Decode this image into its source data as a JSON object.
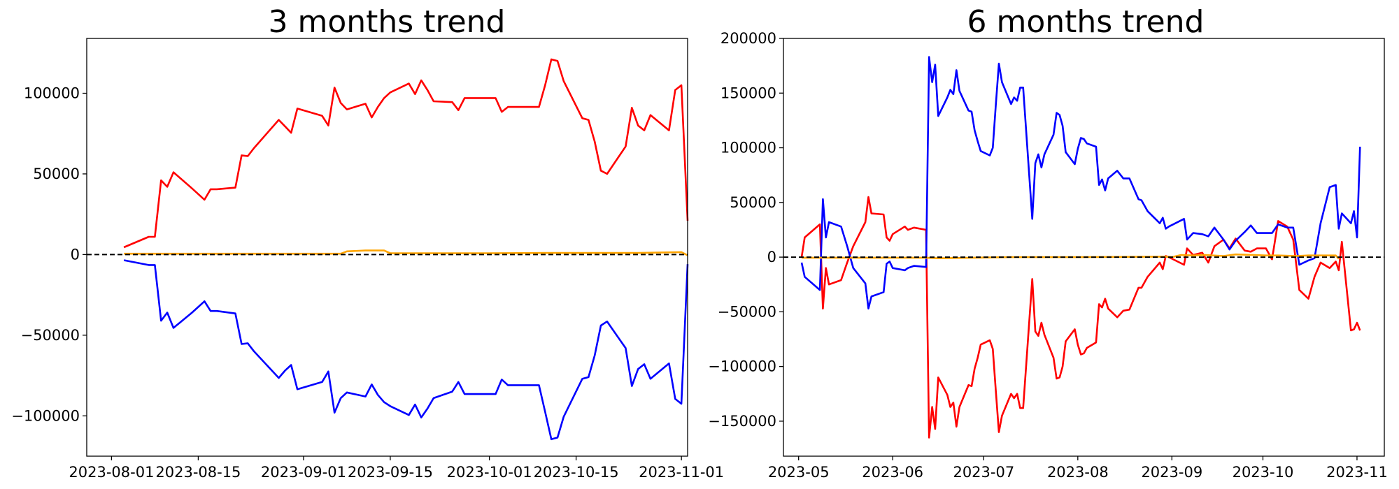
{
  "chart_data": [
    {
      "type": "line",
      "title": "3 months trend",
      "xlabel": "",
      "ylabel": "",
      "x_type": "date",
      "xlim": [
        "2023-07-28",
        "2023-11-02"
      ],
      "ylim": [
        -125000,
        134000
      ],
      "x_ticks": [
        "2023-08-01",
        "2023-08-15",
        "2023-09-01",
        "2023-09-15",
        "2023-10-01",
        "2023-10-15",
        "2023-11-01"
      ],
      "x_tick_labels": [
        "2023-08-01",
        "2023-08-15",
        "2023-09-01",
        "2023-09-15",
        "2023-10-01",
        "2023-10-15",
        "2023-11-01"
      ],
      "y_ticks": [
        -100000,
        -50000,
        0,
        50000,
        100000
      ],
      "y_tick_labels": [
        "−100000",
        "−50000",
        "0",
        "50000",
        "100000"
      ],
      "grid": false,
      "reference_line": {
        "y": 0,
        "style": "dashed",
        "color": "#000000"
      },
      "series": [
        {
          "color": "#ff0000",
          "x": [
            "2023-08-03",
            "2023-08-07",
            "2023-08-08",
            "2023-08-09",
            "2023-08-10",
            "2023-08-11",
            "2023-08-14",
            "2023-08-16",
            "2023-08-17",
            "2023-08-18",
            "2023-08-21",
            "2023-08-22",
            "2023-08-23",
            "2023-08-24",
            "2023-08-28",
            "2023-08-29",
            "2023-08-30",
            "2023-08-31",
            "2023-09-04",
            "2023-09-05",
            "2023-09-06",
            "2023-09-07",
            "2023-09-08",
            "2023-09-11",
            "2023-09-12",
            "2023-09-13",
            "2023-09-14",
            "2023-09-15",
            "2023-09-18",
            "2023-09-19",
            "2023-09-20",
            "2023-09-21",
            "2023-09-22",
            "2023-09-25",
            "2023-09-26",
            "2023-09-27",
            "2023-09-28",
            "2023-09-29",
            "2023-10-02",
            "2023-10-03",
            "2023-10-04",
            "2023-10-05",
            "2023-10-06",
            "2023-10-09",
            "2023-10-10",
            "2023-10-11",
            "2023-10-12",
            "2023-10-13",
            "2023-10-16",
            "2023-10-17",
            "2023-10-18",
            "2023-10-19",
            "2023-10-20",
            "2023-10-23",
            "2023-10-24",
            "2023-10-25",
            "2023-10-26",
            "2023-10-27",
            "2023-10-30",
            "2023-10-31",
            "2023-11-01",
            "2023-11-02"
          ],
          "y": [
            4500,
            11000,
            11000,
            46000,
            42000,
            51000,
            41000,
            34000,
            40500,
            40500,
            41500,
            61500,
            61000,
            66000,
            83500,
            79500,
            75500,
            90500,
            86000,
            80000,
            103500,
            94000,
            90000,
            93500,
            85000,
            91500,
            97000,
            100500,
            106000,
            99500,
            108000,
            102000,
            95000,
            94500,
            89500,
            97000,
            97000,
            97000,
            97000,
            88500,
            91500,
            91500,
            91500,
            91500,
            105000,
            121000,
            120000,
            107500,
            84500,
            83500,
            70000,
            52000,
            50000,
            67000,
            91000,
            80000,
            77000,
            86500,
            77000,
            102000,
            105000,
            21000
          ]
        },
        {
          "color": "#0000ff",
          "x": [
            "2023-08-03",
            "2023-08-07",
            "2023-08-08",
            "2023-08-09",
            "2023-08-10",
            "2023-08-11",
            "2023-08-14",
            "2023-08-16",
            "2023-08-17",
            "2023-08-18",
            "2023-08-21",
            "2023-08-22",
            "2023-08-23",
            "2023-08-24",
            "2023-08-28",
            "2023-08-29",
            "2023-08-30",
            "2023-08-31",
            "2023-09-04",
            "2023-09-05",
            "2023-09-06",
            "2023-09-07",
            "2023-09-08",
            "2023-09-11",
            "2023-09-12",
            "2023-09-13",
            "2023-09-14",
            "2023-09-15",
            "2023-09-18",
            "2023-09-19",
            "2023-09-20",
            "2023-09-21",
            "2023-09-22",
            "2023-09-25",
            "2023-09-26",
            "2023-09-27",
            "2023-09-28",
            "2023-09-29",
            "2023-10-02",
            "2023-10-03",
            "2023-10-04",
            "2023-10-05",
            "2023-10-06",
            "2023-10-09",
            "2023-10-10",
            "2023-10-11",
            "2023-10-12",
            "2023-10-13",
            "2023-10-16",
            "2023-10-17",
            "2023-10-18",
            "2023-10-19",
            "2023-10-20",
            "2023-10-23",
            "2023-10-24",
            "2023-10-25",
            "2023-10-26",
            "2023-10-27",
            "2023-10-30",
            "2023-10-31",
            "2023-11-01",
            "2023-11-02"
          ],
          "y": [
            -3500,
            -6500,
            -6500,
            -41000,
            -36000,
            -45500,
            -36000,
            -29000,
            -35000,
            -35000,
            -36500,
            -55500,
            -55000,
            -60000,
            -76500,
            -72000,
            -68500,
            -83500,
            -79000,
            -72500,
            -98000,
            -89000,
            -85500,
            -88000,
            -80500,
            -87000,
            -91500,
            -94000,
            -99500,
            -93000,
            -101000,
            -95500,
            -89000,
            -85000,
            -79000,
            -86500,
            -86500,
            -86500,
            -86500,
            -77500,
            -81000,
            -81000,
            -81000,
            -81000,
            -97500,
            -114500,
            -113500,
            -100500,
            -77000,
            -76000,
            -62500,
            -44000,
            -41500,
            -58000,
            -81500,
            -71000,
            -68000,
            -77000,
            -67500,
            -89500,
            -92500,
            -6000
          ]
        },
        {
          "color": "#ffa500",
          "x": [
            "2023-08-03",
            "2023-08-21",
            "2023-09-07",
            "2023-09-08",
            "2023-09-11",
            "2023-09-14",
            "2023-09-15",
            "2023-10-01",
            "2023-10-10",
            "2023-10-20",
            "2023-10-25",
            "2023-11-01",
            "2023-11-02"
          ],
          "y": [
            500,
            500,
            500,
            2000,
            2500,
            2500,
            800,
            800,
            1000,
            1000,
            1000,
            1500,
            -500
          ]
        }
      ]
    },
    {
      "type": "line",
      "title": "6 months trend",
      "xlabel": "",
      "ylabel": "",
      "x_type": "date",
      "xlim": [
        "2023-04-26",
        "2023-11-10"
      ],
      "ylim": [
        -182000,
        200000
      ],
      "x_ticks": [
        "2023-05-01",
        "2023-06-01",
        "2023-07-01",
        "2023-08-01",
        "2023-09-01",
        "2023-10-01",
        "2023-11-01"
      ],
      "x_tick_labels": [
        "2023-05",
        "2023-06",
        "2023-07",
        "2023-08",
        "2023-09",
        "2023-10",
        "2023-11"
      ],
      "y_ticks": [
        -150000,
        -100000,
        -50000,
        0,
        50000,
        100000,
        150000,
        200000
      ],
      "y_tick_labels": [
        "−150000",
        "−100000",
        "−50000",
        "0",
        "50000",
        "100000",
        "150000",
        "200000"
      ],
      "grid": false,
      "reference_line": {
        "y": 0,
        "style": "dashed",
        "color": "#000000"
      },
      "series": [
        {
          "color": "#ff0000",
          "x": [
            "2023-05-02",
            "2023-05-03",
            "2023-05-08",
            "2023-05-09",
            "2023-05-10",
            "2023-05-11",
            "2023-05-15",
            "2023-05-17",
            "2023-05-19",
            "2023-05-23",
            "2023-05-24",
            "2023-05-25",
            "2023-05-29",
            "2023-05-30",
            "2023-05-31",
            "2023-06-01",
            "2023-06-05",
            "2023-06-06",
            "2023-06-08",
            "2023-06-12",
            "2023-06-13",
            "2023-06-14",
            "2023-06-15",
            "2023-06-16",
            "2023-06-19",
            "2023-06-20",
            "2023-06-21",
            "2023-06-22",
            "2023-06-23",
            "2023-06-26",
            "2023-06-27",
            "2023-06-28",
            "2023-06-29",
            "2023-06-30",
            "2023-07-03",
            "2023-07-04",
            "2023-07-05",
            "2023-07-06",
            "2023-07-07",
            "2023-07-10",
            "2023-07-11",
            "2023-07-12",
            "2023-07-13",
            "2023-07-14",
            "2023-07-17",
            "2023-07-18",
            "2023-07-19",
            "2023-07-20",
            "2023-07-21",
            "2023-07-24",
            "2023-07-25",
            "2023-07-26",
            "2023-07-27",
            "2023-07-28",
            "2023-07-31",
            "2023-08-01",
            "2023-08-02",
            "2023-08-03",
            "2023-08-04",
            "2023-08-07",
            "2023-08-08",
            "2023-08-09",
            "2023-08-10",
            "2023-08-11",
            "2023-08-14",
            "2023-08-16",
            "2023-08-18",
            "2023-08-21",
            "2023-08-22",
            "2023-08-24",
            "2023-08-28",
            "2023-08-29",
            "2023-08-30",
            "2023-08-31",
            "2023-09-05",
            "2023-09-06",
            "2023-09-08",
            "2023-09-11",
            "2023-09-13",
            "2023-09-15",
            "2023-09-18",
            "2023-09-20",
            "2023-09-22",
            "2023-09-25",
            "2023-09-27",
            "2023-09-29",
            "2023-10-02",
            "2023-10-04",
            "2023-10-06",
            "2023-10-09",
            "2023-10-11",
            "2023-10-13",
            "2023-10-16",
            "2023-10-18",
            "2023-10-20",
            "2023-10-23",
            "2023-10-25",
            "2023-10-26",
            "2023-10-27",
            "2023-10-30",
            "2023-10-31",
            "2023-11-01",
            "2023-11-02"
          ],
          "y": [
            0,
            18000,
            30000,
            -47000,
            -10000,
            -25000,
            -21000,
            -5000,
            10000,
            32000,
            55000,
            40000,
            39000,
            18000,
            15000,
            21000,
            28000,
            25000,
            27000,
            25000,
            -165000,
            -137000,
            -157000,
            -110000,
            -126000,
            -137000,
            -133000,
            -155000,
            -137000,
            -117000,
            -118000,
            -102000,
            -92000,
            -80000,
            -76000,
            -84000,
            -123000,
            -160000,
            -145000,
            -125000,
            -129000,
            -125000,
            -138000,
            -138000,
            -20000,
            -68000,
            -72000,
            -60000,
            -71000,
            -92000,
            -111000,
            -110000,
            -100000,
            -77000,
            -66000,
            -80000,
            -89000,
            -88000,
            -83000,
            -78000,
            -43000,
            -46000,
            -38000,
            -47000,
            -55000,
            -49000,
            -48000,
            -28000,
            -28000,
            -18000,
            -5000,
            -11000,
            1000,
            0,
            -7000,
            8000,
            2000,
            4000,
            -5000,
            10000,
            16000,
            8000,
            17000,
            6000,
            5000,
            8000,
            8000,
            -2000,
            33000,
            28000,
            16000,
            -30000,
            -38000,
            -18000,
            -5000,
            -10000,
            -4000,
            -12000,
            14000,
            -67000,
            -66000,
            -60000,
            -67000
          ]
        },
        {
          "color": "#0000ff",
          "x": [
            "2023-05-02",
            "2023-05-03",
            "2023-05-08",
            "2023-05-09",
            "2023-05-10",
            "2023-05-11",
            "2023-05-15",
            "2023-05-17",
            "2023-05-19",
            "2023-05-23",
            "2023-05-24",
            "2023-05-25",
            "2023-05-29",
            "2023-05-30",
            "2023-05-31",
            "2023-06-01",
            "2023-06-05",
            "2023-06-06",
            "2023-06-08",
            "2023-06-12",
            "2023-06-13",
            "2023-06-14",
            "2023-06-15",
            "2023-06-16",
            "2023-06-19",
            "2023-06-20",
            "2023-06-21",
            "2023-06-22",
            "2023-06-23",
            "2023-06-26",
            "2023-06-27",
            "2023-06-28",
            "2023-06-29",
            "2023-06-30",
            "2023-07-03",
            "2023-07-04",
            "2023-07-05",
            "2023-07-06",
            "2023-07-07",
            "2023-07-10",
            "2023-07-11",
            "2023-07-12",
            "2023-07-13",
            "2023-07-14",
            "2023-07-17",
            "2023-07-18",
            "2023-07-19",
            "2023-07-20",
            "2023-07-21",
            "2023-07-24",
            "2023-07-25",
            "2023-07-26",
            "2023-07-27",
            "2023-07-28",
            "2023-07-31",
            "2023-08-01",
            "2023-08-02",
            "2023-08-03",
            "2023-08-04",
            "2023-08-07",
            "2023-08-08",
            "2023-08-09",
            "2023-08-10",
            "2023-08-11",
            "2023-08-14",
            "2023-08-16",
            "2023-08-18",
            "2023-08-21",
            "2023-08-22",
            "2023-08-24",
            "2023-08-28",
            "2023-08-29",
            "2023-08-30",
            "2023-08-31",
            "2023-09-05",
            "2023-09-06",
            "2023-09-08",
            "2023-09-11",
            "2023-09-13",
            "2023-09-15",
            "2023-09-18",
            "2023-09-20",
            "2023-09-22",
            "2023-09-25",
            "2023-09-27",
            "2023-09-29",
            "2023-10-02",
            "2023-10-04",
            "2023-10-06",
            "2023-10-09",
            "2023-10-11",
            "2023-10-13",
            "2023-10-16",
            "2023-10-18",
            "2023-10-20",
            "2023-10-23",
            "2023-10-25",
            "2023-10-26",
            "2023-10-27",
            "2023-10-30",
            "2023-10-31",
            "2023-11-01",
            "2023-11-02"
          ],
          "y": [
            -5000,
            -18000,
            -30000,
            53000,
            18000,
            32000,
            28000,
            10000,
            -10000,
            -24000,
            -47000,
            -36000,
            -32000,
            -6000,
            -4000,
            -10000,
            -12000,
            -10000,
            -8000,
            -9000,
            183000,
            160000,
            176000,
            129000,
            146000,
            153000,
            149000,
            171000,
            152000,
            134000,
            133000,
            116000,
            106000,
            97000,
            93000,
            100000,
            140000,
            177000,
            160000,
            140000,
            146000,
            143000,
            155000,
            155000,
            35000,
            86000,
            94000,
            82000,
            94000,
            112000,
            132000,
            130000,
            120000,
            96000,
            85000,
            99000,
            109000,
            108000,
            104000,
            101000,
            66000,
            71000,
            61000,
            72000,
            79000,
            72000,
            72000,
            53000,
            52000,
            42000,
            31000,
            36000,
            26000,
            28000,
            35000,
            16000,
            22000,
            21000,
            19000,
            27000,
            16000,
            7000,
            15000,
            23000,
            29000,
            22000,
            22000,
            22000,
            30000,
            27000,
            27000,
            -7000,
            -3000,
            -1000,
            31000,
            64000,
            66000,
            26000,
            40000,
            31000,
            42000,
            18000,
            101000
          ]
        },
        {
          "color": "#ffa500",
          "x": [
            "2023-05-02",
            "2023-06-12",
            "2023-06-16",
            "2023-07-10",
            "2023-08-01",
            "2023-08-30",
            "2023-09-01",
            "2023-09-04",
            "2023-09-08",
            "2023-09-12",
            "2023-09-18",
            "2023-09-22",
            "2023-09-28",
            "2023-10-02",
            "2023-10-06",
            "2023-10-12",
            "2023-10-16",
            "2023-10-20",
            "2023-10-25",
            "2023-10-26"
          ],
          "y": [
            -500,
            -500,
            -1000,
            0,
            0,
            500,
            0,
            2000,
            1500,
            2000,
            1000,
            2500,
            2000,
            1500,
            1500,
            1000,
            1500,
            1500,
            1500,
            -1500
          ]
        }
      ]
    }
  ]
}
